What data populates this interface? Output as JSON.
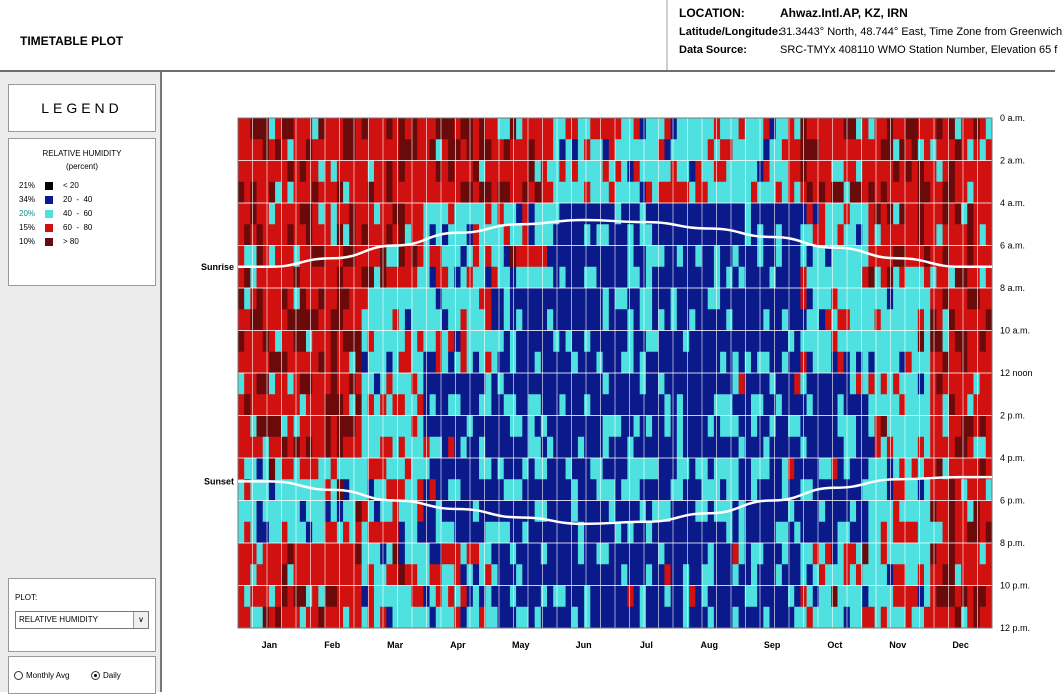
{
  "header": {
    "title": "TIMETABLE PLOT",
    "location_label": "LOCATION:",
    "location_value": "Ahwaz.Intl.AP, KZ, IRN",
    "latlong_label": "Latitude/Longitude:",
    "latlong_value": "31.3443° North, 48.744° East, Time Zone from Greenwich",
    "source_label": "Data Source:",
    "source_value": "SRC-TMYx    408110 WMO Station Number, Elevation 65 f"
  },
  "legend": {
    "title": "LEGEND",
    "heading": "RELATIVE HUMIDITY",
    "unit": "(percent)",
    "rows": [
      {
        "pct": "21%",
        "range": "< 20",
        "color": "#000000",
        "pct_color": "#000000"
      },
      {
        "pct": "34%",
        "range": "20  -  40",
        "color": "#0a1a8a",
        "pct_color": "#000000"
      },
      {
        "pct": "20%",
        "range": "40  -  60",
        "color": "#4fe0e0",
        "pct_color": "#0e8a8a"
      },
      {
        "pct": "15%",
        "range": "60  -  80",
        "color": "#d11010",
        "pct_color": "#000000"
      },
      {
        "pct": "10%",
        "range": "> 80",
        "color": "#6a0a0a",
        "pct_color": "#000000"
      }
    ]
  },
  "controls": {
    "plot_label": "PLOT:",
    "plot_selected": "RELATIVE HUMIDITY",
    "dropdown_icon": "chevron-down-icon",
    "radio_monthly": "Monthly Avg",
    "radio_daily": "Daily",
    "radio_selected": "Daily"
  },
  "chart_data": {
    "type": "heatmap",
    "title": "",
    "x_categories": [
      "Jan",
      "Feb",
      "Mar",
      "Apr",
      "May",
      "Jun",
      "Jul",
      "Aug",
      "Sep",
      "Oct",
      "Nov",
      "Dec"
    ],
    "y_tick_labels": [
      "0 a.m.",
      "2 a.m.",
      "4 a.m.",
      "6 a.m.",
      "8 a.m.",
      "10 a.m.",
      "12 noon",
      "2 p.m.",
      "4 p.m.",
      "6 p.m.",
      "8 p.m.",
      "10 p.m.",
      "12 p.m."
    ],
    "y_range_hours": [
      0,
      24
    ],
    "x_range_days": [
      0,
      365
    ],
    "grid": true,
    "sunrise": {
      "name": "Sunrise",
      "hours_by_month": [
        7.0,
        6.6,
        6.0,
        5.4,
        5.0,
        4.8,
        4.9,
        5.2,
        5.6,
        6.1,
        6.6,
        7.0
      ]
    },
    "sunset": {
      "name": "Sunset",
      "hours_by_month": [
        17.1,
        17.5,
        18.0,
        18.4,
        18.8,
        19.1,
        19.0,
        18.6,
        18.0,
        17.4,
        17.0,
        16.9
      ]
    },
    "humidity_bins": [
      {
        "range": "< 20",
        "share_percent": 21
      },
      {
        "range": "20 - 40",
        "share_percent": 34
      },
      {
        "range": "40 - 60",
        "share_percent": 20
      },
      {
        "range": "60 - 80",
        "share_percent": 15
      },
      {
        "range": "> 80",
        "share_percent": 10
      }
    ],
    "monthly_rh_by_block": [
      [
        3,
        3,
        3,
        3,
        3,
        2,
        2,
        2,
        2,
        3,
        3,
        3
      ],
      [
        3,
        3,
        3,
        2,
        2,
        1,
        1,
        1,
        1,
        2,
        3,
        3
      ],
      [
        3,
        3,
        2,
        2,
        1,
        1,
        1,
        1,
        1,
        2,
        2,
        3
      ],
      [
        3,
        3,
        2,
        1,
        1,
        1,
        1,
        1,
        1,
        1,
        2,
        3
      ],
      [
        2,
        2,
        2,
        1,
        1,
        1,
        1,
        1,
        1,
        1,
        2,
        3
      ],
      [
        3,
        3,
        2,
        2,
        1,
        1,
        1,
        1,
        1,
        2,
        2,
        3
      ]
    ],
    "colors": {
      "very_dry": "#000000",
      "dry": "#0a1a8a",
      "medium": "#4fe0e0",
      "humid": "#d11010",
      "very_humid": "#6a0a0a",
      "sun_line": "#ffffff"
    }
  }
}
